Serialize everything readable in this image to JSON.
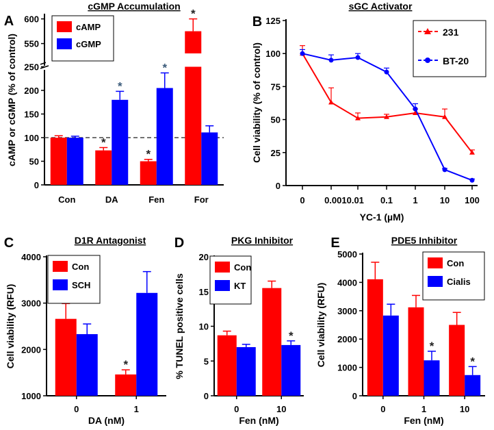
{
  "chart_data": [
    {
      "panel": "A",
      "type": "bar",
      "title": "cGMP Accumulation",
      "ylabel": "cAMP or cGMP (% of control)",
      "categories": [
        "Con",
        "DA",
        "Fen",
        "For"
      ],
      "yticks": [
        "0",
        "50",
        "100",
        "150",
        "200",
        "250",
        "550",
        "600"
      ],
      "axis_break": [
        250,
        550
      ],
      "reference_line": 100,
      "series": [
        {
          "name": "cAMP",
          "color": "#ff0000",
          "values": [
            100,
            73,
            50,
            575
          ],
          "errors": [
            4,
            6,
            4,
            25
          ],
          "sig": [
            false,
            true,
            true,
            true
          ]
        },
        {
          "name": "cGMP",
          "color": "#0000ff",
          "values": [
            100,
            180,
            205,
            111
          ],
          "errors": [
            3,
            18,
            32,
            14
          ],
          "sig": [
            false,
            true,
            true,
            false
          ]
        }
      ]
    },
    {
      "panel": "B",
      "type": "line",
      "title": "sGC Activator",
      "xlabel": "YC-1 (µM)",
      "ylabel": "Cell viability (% of control)",
      "x": [
        "0",
        "0.001",
        "0.01",
        "0.1",
        "1",
        "10",
        "100"
      ],
      "xtick_text": [
        "0",
        "0.0010.01",
        "0.1",
        "1",
        "10",
        "100"
      ],
      "yticks": [
        "0",
        "25",
        "50",
        "75",
        "100",
        "125"
      ],
      "ylim": [
        0,
        125
      ],
      "series": [
        {
          "name": "231",
          "color": "#ff0000",
          "marker": "triangle",
          "values": [
            100,
            63,
            51,
            52,
            55,
            52,
            25
          ],
          "errors": [
            6,
            11,
            4,
            2,
            3,
            6,
            2
          ]
        },
        {
          "name": "BT-20",
          "color": "#0000ff",
          "marker": "circle",
          "values": [
            100,
            95,
            97,
            86,
            58,
            12,
            4
          ],
          "errors": [
            3,
            4,
            3,
            3,
            4,
            1,
            1
          ]
        }
      ]
    },
    {
      "panel": "C",
      "type": "bar",
      "title": "D1R Antagonist",
      "xlabel": "DA (nM)",
      "ylabel": "Cell viability (RFU)",
      "categories": [
        "0",
        "1"
      ],
      "yticks": [
        "1000",
        "2000",
        "3000",
        "4000"
      ],
      "ylim": [
        1000,
        4000
      ],
      "series": [
        {
          "name": "Con",
          "color": "#ff0000",
          "values": [
            2660,
            1460
          ],
          "errors": [
            330,
            100
          ],
          "sig": [
            false,
            true
          ]
        },
        {
          "name": "SCH",
          "color": "#0000ff",
          "values": [
            2330,
            3220
          ],
          "errors": [
            220,
            460
          ],
          "sig": [
            false,
            false
          ]
        }
      ]
    },
    {
      "panel": "D",
      "type": "bar",
      "title": "PKG Inhibitor",
      "xlabel": "Fen (nM)",
      "ylabel": "% TUNEL positive cells",
      "categories": [
        "0",
        "10"
      ],
      "yticks": [
        "0",
        "5",
        "10",
        "15",
        "20"
      ],
      "ylim": [
        0,
        20
      ],
      "series": [
        {
          "name": "Con",
          "color": "#ff0000",
          "values": [
            8.7,
            15.5
          ],
          "errors": [
            0.6,
            1.0
          ],
          "sig": [
            false,
            false
          ]
        },
        {
          "name": "KT",
          "color": "#0000ff",
          "values": [
            7.0,
            7.3
          ],
          "errors": [
            0.4,
            0.6
          ],
          "sig": [
            false,
            true
          ]
        }
      ]
    },
    {
      "panel": "E",
      "type": "bar",
      "title": "PDE5 Inhibitor",
      "xlabel": "Fen (nM)",
      "ylabel": "Cell viability (RFU)",
      "categories": [
        "0",
        "1",
        "10"
      ],
      "yticks": [
        "0",
        "1000",
        "2000",
        "3000",
        "4000",
        "5000"
      ],
      "ylim": [
        0,
        5000
      ],
      "series": [
        {
          "name": "Con",
          "color": "#ff0000",
          "values": [
            4110,
            3120,
            2500
          ],
          "errors": [
            600,
            420,
            440
          ],
          "sig": [
            false,
            false,
            false
          ]
        },
        {
          "name": "Cialis",
          "color": "#0000ff",
          "values": [
            2830,
            1250,
            730
          ],
          "errors": [
            400,
            320,
            300
          ],
          "sig": [
            false,
            true,
            true
          ]
        }
      ]
    }
  ]
}
